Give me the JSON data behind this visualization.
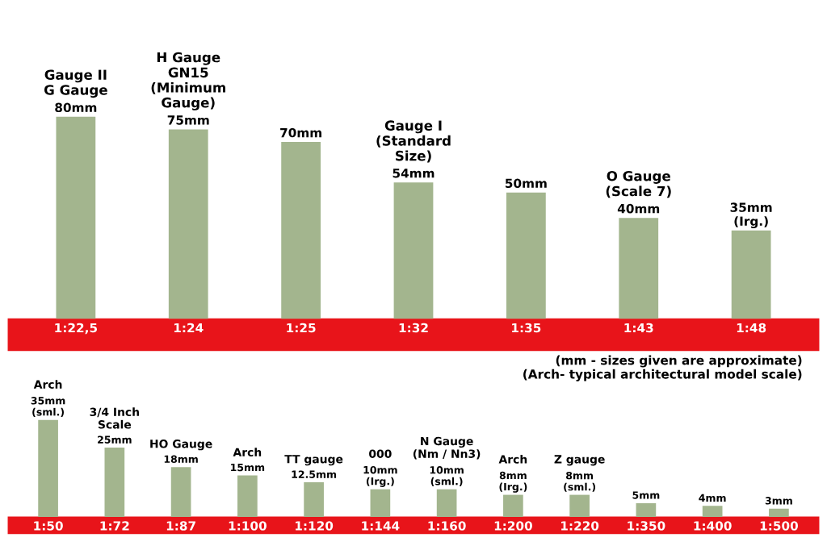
{
  "chart_data": [
    {
      "type": "bar",
      "categories": [
        "1:22,5",
        "1:24",
        "1:25",
        "1:32",
        "1:35",
        "1:43",
        "1:48"
      ],
      "tick_labels": "x",
      "grid": false,
      "legend": false,
      "series": [
        {
          "color": "#a3b58e",
          "values": [
            80,
            75,
            70,
            54,
            50,
            40,
            35
          ],
          "value_labels": [
            "80mm",
            "75mm",
            "70mm",
            "54mm",
            "50mm",
            "40mm",
            "35mm\n(Irg.)"
          ]
        }
      ],
      "annotations": [
        {
          "text": "Gauge II\nG Gauge",
          "x": "1:22,5",
          "y": 80
        },
        {
          "text": "H Gauge\nGN15\n(Minimum\nGauge)",
          "x": "1:24",
          "y": 75
        },
        {
          "text": "Gauge I\n(Standard\nSize)",
          "x": "1:32",
          "y": 54
        },
        {
          "text": "O Gauge\n(Scale 7)",
          "x": "1:43",
          "y": 40
        }
      ]
    },
    {
      "type": "bar",
      "categories": [
        "1:50",
        "1:72",
        "1:87",
        "1:100",
        "1:120",
        "1:144",
        "1:160",
        "1:200",
        "1:220",
        "1:350",
        "1:400",
        "1:500"
      ],
      "tick_labels": "x",
      "grid": false,
      "legend": false,
      "series": [
        {
          "color": "#a3b58e",
          "values": [
            35,
            25,
            18,
            15,
            12.5,
            10,
            10,
            8,
            8,
            5,
            4,
            3
          ],
          "value_labels": [
            "35mm\n(sml.)",
            "25mm",
            "18mm",
            "15mm",
            "12.5mm",
            "10mm\n(Irg.)",
            "10mm\n(sml.)",
            "8mm\n(Irg.)",
            "8mm\n(sml.)",
            "5mm",
            "4mm",
            "3mm"
          ]
        }
      ],
      "annotations": [
        {
          "text": "Arch",
          "x": "1:50",
          "y": 35
        },
        {
          "text": "3/4 Inch\nScale",
          "x": "1:72",
          "y": 25
        },
        {
          "text": "HO Gauge",
          "x": "1:87",
          "y": 18
        },
        {
          "text": "Arch",
          "x": "1:100",
          "y": 15
        },
        {
          "text": "TT gauge",
          "x": "1:120",
          "y": 12.5
        },
        {
          "text": "000",
          "x": "1:144",
          "y": 10
        },
        {
          "text": "N Gauge\n(Nm / Nn3)",
          "x": "1:160",
          "y": 10
        },
        {
          "text": "Arch",
          "x": "1:200",
          "y": 8
        },
        {
          "text": "Z gauge",
          "x": "1:220",
          "y": 8
        },
        "(mm - sizes given are approximate)\n(Arch- typical architectural model scale)"
      ]
    }
  ]
}
